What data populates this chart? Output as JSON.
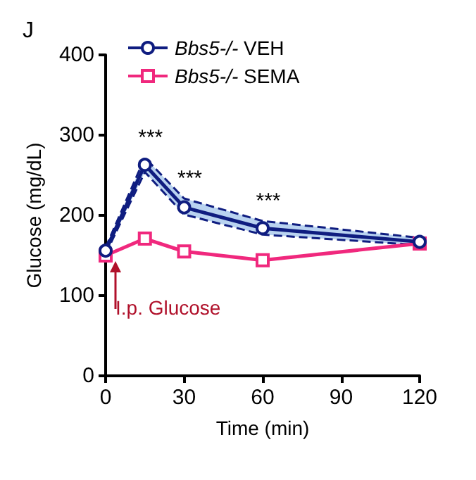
{
  "chart_data": {
    "type": "line",
    "xlabel": "Time (min)",
    "ylabel": "Glucose (mg/dL)",
    "x": [
      0,
      15,
      30,
      60,
      120
    ],
    "series": [
      {
        "name": "Bbs5-/- VEH",
        "color": "#0f1d80",
        "marker": "circle",
        "values": [
          156,
          263,
          210,
          184,
          167
        ],
        "lower": [
          152,
          254,
          201,
          176,
          163
        ],
        "upper": [
          160,
          272,
          221,
          193,
          172
        ]
      },
      {
        "color": "#0f1d80",
        "marker": "none",
        "line_style": "dashed",
        "values": [
          152,
          254,
          201,
          176,
          163
        ]
      },
      {
        "color": "#0f1d80",
        "marker": "none",
        "line_style": "dashed",
        "values": [
          160,
          272,
          221,
          193,
          172
        ]
      },
      {
        "name": "Bbs5-/- SEMA",
        "color": "#f0287d",
        "marker": "square",
        "values": [
          150,
          171,
          155,
          144,
          165
        ]
      }
    ],
    "xlim": [
      0,
      120
    ],
    "xticks": [
      0,
      30,
      60,
      90,
      120
    ],
    "ylim": [
      0,
      400
    ],
    "yticks": [
      0,
      100,
      200,
      300,
      400
    ],
    "grid": false,
    "legend": "top left",
    "line_style": "solid",
    "annotations": [
      "J",
      {
        "text": "***",
        "x": 15,
        "y": 272
      },
      {
        "text": "***",
        "x": 30,
        "y": 221
      },
      {
        "text": "***",
        "x": 60,
        "y": 193
      },
      {
        "text": "I.p. Glucose",
        "x": 0,
        "y": 150
      }
    ]
  }
}
